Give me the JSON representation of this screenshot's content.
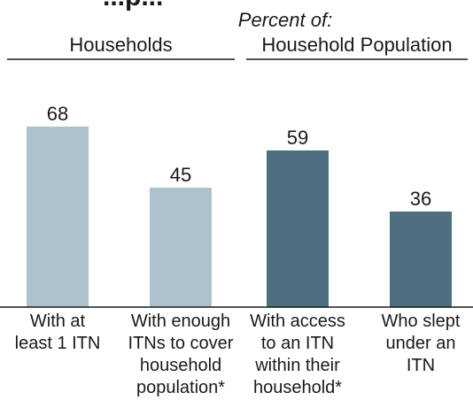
{
  "chart_data": {
    "type": "bar",
    "title_partial": "...p...",
    "group_header": "Percent of:",
    "groups": [
      {
        "label": "Households",
        "categories": [
          0,
          1
        ]
      },
      {
        "label": "Household Population",
        "categories": [
          2,
          3
        ]
      }
    ],
    "categories": [
      [
        "With at",
        "least 1 ITN"
      ],
      [
        "With enough",
        "ITNs to cover",
        "household",
        "population*"
      ],
      [
        "With access",
        "to an ITN",
        "within their",
        "household*"
      ],
      [
        "Who slept",
        "under an",
        "ITN"
      ]
    ],
    "values": [
      68,
      45,
      59,
      36
    ],
    "bar_colors": [
      "#adc2cc",
      "#adc2cc",
      "#4d6f7f",
      "#4d6f7f"
    ],
    "ylim": [
      0,
      100
    ],
    "grid": false,
    "legend": "none"
  }
}
